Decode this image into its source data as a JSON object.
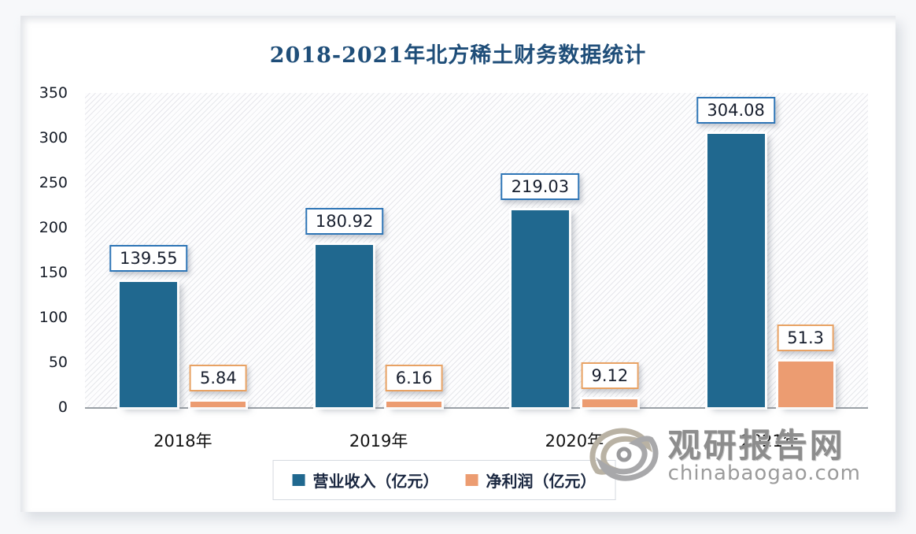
{
  "title": "2018-2021年北方稀土财务数据统计",
  "chart_data": {
    "type": "bar",
    "categories": [
      "2018年",
      "2019年",
      "2020年",
      "2021年"
    ],
    "series": [
      {
        "name": "营业收入（亿元）",
        "values": [
          139.55,
          180.92,
          219.03,
          304.08
        ],
        "color": "#20688f",
        "label_border": "#2e75b6"
      },
      {
        "name": "净利润（亿元）",
        "values": [
          5.84,
          6.16,
          9.12,
          51.3
        ],
        "color": "#ec9c71",
        "label_border": "#e8a264"
      }
    ],
    "ylim": [
      0,
      350
    ],
    "yticks": [
      0,
      50,
      100,
      150,
      200,
      250,
      300,
      350
    ],
    "grid": false,
    "legend_position": "bottom",
    "plot_background": "diagonal-hatch"
  },
  "colors": {
    "title": "#1f4e79",
    "axis_line": "#9aa0a6",
    "revenue_bar": "#20688f",
    "profit_bar": "#ec9c71"
  },
  "watermark": {
    "name": "观研报告网",
    "url": "chinabaogao.com"
  }
}
